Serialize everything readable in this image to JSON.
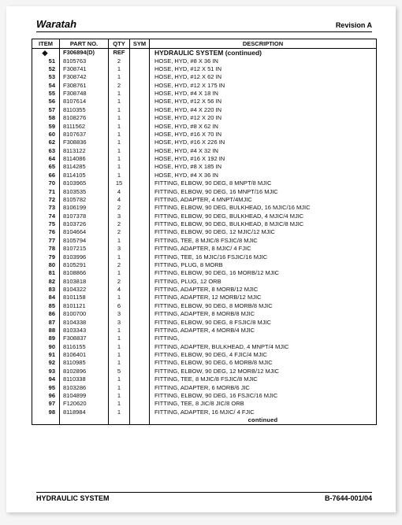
{
  "header": {
    "brand": "Waratah",
    "revision": "Revision A"
  },
  "footer": {
    "left": "HYDRAULIC SYSTEM",
    "right": "B-7644-001/04"
  },
  "columns": {
    "item": "ITEM",
    "part": "PART NO.",
    "qty": "QTY",
    "sym": "SYM",
    "desc": "DESCRIPTION"
  },
  "section": {
    "symbol": "◆",
    "ref_part": "F306894(D)",
    "ref_qty": "REF",
    "title": "HYDRAULIC SYSTEM (continued)"
  },
  "rows": [
    {
      "i": "51",
      "p": "8105763",
      "q": "2",
      "d": "HOSE, HYD, #8 X 36 IN"
    },
    {
      "i": "52",
      "p": "F308741",
      "q": "1",
      "d": "HOSE, HYD, #12 X 51 IN"
    },
    {
      "i": "53",
      "p": "F308742",
      "q": "1",
      "d": "HOSE, HYD, #12 X 62 IN"
    },
    {
      "i": "54",
      "p": "F308761",
      "q": "2",
      "d": "HOSE, HYD, #12 X 175 IN"
    },
    {
      "i": "55",
      "p": "F308748",
      "q": "1",
      "d": "HOSE, HYD, #4 X 18 IN"
    },
    {
      "i": "56",
      "p": "8107614",
      "q": "1",
      "d": "HOSE, HYD, #12 X 56 IN"
    },
    {
      "i": "57",
      "p": "8110355",
      "q": "1",
      "d": "HOSE, HYD, #4 X 220 IN"
    },
    {
      "i": "58",
      "p": "8108276",
      "q": "1",
      "d": "HOSE, HYD, #12 X 20 IN"
    },
    {
      "i": "59",
      "p": "8111562",
      "q": "1",
      "d": "HOSE, HYD, #8 X 62 IN"
    },
    {
      "i": "60",
      "p": "8107637",
      "q": "1",
      "d": "HOSE, HYD, #16 X 70 IN"
    },
    {
      "i": "62",
      "p": "F308836",
      "q": "1",
      "d": "HOSE, HYD, #16 X 226 IN"
    },
    {
      "i": "63",
      "p": "8113122",
      "q": "1",
      "d": "HOSE, HYD, #4 X 32 IN"
    },
    {
      "i": "64",
      "p": "8114086",
      "q": "1",
      "d": "HOSE, HYD, #16 X 192 IN"
    },
    {
      "i": "65",
      "p": "8114285",
      "q": "1",
      "d": "HOSE, HYD, #8 X 185 IN"
    },
    {
      "i": "66",
      "p": "8114105",
      "q": "1",
      "d": "HOSE, HYD, #4 X 36 IN"
    },
    {
      "i": "70",
      "p": "8103965",
      "q": "15",
      "d": "FITTING, ELBOW, 90 DEG, 8 MNPT/8 MJIC"
    },
    {
      "i": "71",
      "p": "8103535",
      "q": "4",
      "d": "FITTING, ELBOW, 90 DEG, 16 MNPT/16 MJIC"
    },
    {
      "i": "72",
      "p": "8105782",
      "q": "4",
      "d": "FITTING, ADAPTER, 4 MNPT/4MJIC"
    },
    {
      "i": "73",
      "p": "8106199",
      "q": "2",
      "d": "FITTING, ELBOW, 90 DEG, BULKHEAD, 16 MJIC/16 MJIC"
    },
    {
      "i": "74",
      "p": "8107378",
      "q": "3",
      "d": "FITTING, ELBOW, 90 DEG, BULKHEAD, 4 MJIC/4 MJIC"
    },
    {
      "i": "75",
      "p": "8103726",
      "q": "2",
      "d": "FITTING, ELBOW, 90 DEG, BULKHEAD, 8 MJIC/8 MJIC"
    },
    {
      "i": "76",
      "p": "8104664",
      "q": "2",
      "d": "FITTING, ELBOW, 90 DEG, 12 MJIC/12 MJIC"
    },
    {
      "i": "77",
      "p": "8105794",
      "q": "1",
      "d": "FITTING, TEE, 8 MJIC/8 FSJIC/8 MJIC"
    },
    {
      "i": "78",
      "p": "8107215",
      "q": "3",
      "d": "FITTING, ADAPTER, 8 MJIC/ 4 FJIC"
    },
    {
      "i": "79",
      "p": "8103996",
      "q": "1",
      "d": "FITTING, TEE, 16 MJIC/16 FSJIC/16 MJIC"
    },
    {
      "i": "80",
      "p": "8105291",
      "q": "2",
      "d": "FITTING, PLUG, 8 MORB"
    },
    {
      "i": "81",
      "p": "8108866",
      "q": "1",
      "d": "FITTING, ELBOW, 90 DEG, 16 MORB/12 MJIC"
    },
    {
      "i": "82",
      "p": "8103818",
      "q": "2",
      "d": "FITTING, PLUG, 12 ORB"
    },
    {
      "i": "83",
      "p": "8104322",
      "q": "4",
      "d": "FITTING, ADAPTER, 8 MORB/12 MJIC"
    },
    {
      "i": "84",
      "p": "8101158",
      "q": "1",
      "d": "FITTING, ADAPTER, 12 MORB/12 MJIC"
    },
    {
      "i": "85",
      "p": "8101121",
      "q": "6",
      "d": "FITTING, ELBOW, 90 DEG, 8 MORB/8 MJIC"
    },
    {
      "i": "86",
      "p": "8100700",
      "q": "3",
      "d": "FITTING, ADAPTER, 8 MORB/8 MJIC"
    },
    {
      "i": "87",
      "p": "8104338",
      "q": "3",
      "d": "FITTING, ELBOW, 90 DEG, 8 FSJIC/8 MJIC"
    },
    {
      "i": "88",
      "p": "8103343",
      "q": "1",
      "d": "FITTING, ADAPTER, 4 MORB/4 MJIC"
    },
    {
      "i": "89",
      "p": "F308837",
      "q": "1",
      "d": "FITTING,"
    },
    {
      "i": "90",
      "p": "8116155",
      "q": "1",
      "d": "FITTING, ADAPTER, BULKHEAD, 4 MNPT/4 MJIC"
    },
    {
      "i": "91",
      "p": "8106401",
      "q": "1",
      "d": "FITTING, ELBOW, 90 DEG, 4 FJIC/4 MJIC"
    },
    {
      "i": "92",
      "p": "8110985",
      "q": "1",
      "d": "FITTING, ELBOW, 90 DEG, 6 MORB/8 MJIC"
    },
    {
      "i": "93",
      "p": "8102896",
      "q": "5",
      "d": "FITTING, ELBOW, 90 DEG, 12 MORB/12 MJIC"
    },
    {
      "i": "94",
      "p": "8110338",
      "q": "1",
      "d": "FITTING, TEE, 8 MJIC/8 FSJIC/8 MJIC"
    },
    {
      "i": "95",
      "p": "8103286",
      "q": "1",
      "d": "FITTING, ADAPTER, 6 MORB/6 JIC"
    },
    {
      "i": "96",
      "p": "8104899",
      "q": "1",
      "d": "FITTING, ELBOW, 90 DEG, 16 FSJIC/16 MJIC"
    },
    {
      "i": "97",
      "p": "F120620",
      "q": "1",
      "d": "FITTING, TEE, 8 JIC/8 JIC/8 ORB"
    },
    {
      "i": "98",
      "p": "8118984",
      "q": "1",
      "d": "FITTING, ADAPTER, 16 MJIC/ 4 FJIC"
    }
  ],
  "continued": "continued"
}
